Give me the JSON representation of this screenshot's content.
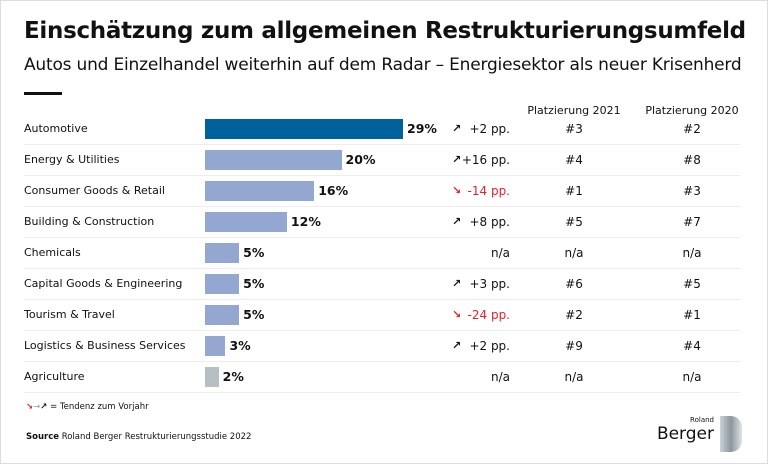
{
  "title": "Einschätzung zum allgemeinen Restrukturierungsumfeld",
  "subtitle": "Autos und Einzelhandel weiterhin auf dem Radar – Energiesektor als neuer Krisenherd",
  "col_2021": "Platzierung 2021",
  "col_2020": "Platzierung 2020",
  "colors": {
    "highlight": "#00629b",
    "bar": "#94a7d0",
    "bar_muted": "#b5bfc4",
    "down": "#e8202a",
    "up": "#111111"
  },
  "chart_data": {
    "type": "bar",
    "orientation": "horizontal",
    "unit": "%",
    "categories": [
      "Automotive",
      "Energy & Utilities",
      "Consumer Goods & Retail",
      "Building & Construction",
      "Chemicals",
      "Capital Goods & Engineering",
      "Tourism & Travel",
      "Logistics & Business Services",
      "Agriculture"
    ],
    "values": [
      29,
      20,
      16,
      12,
      5,
      5,
      5,
      3,
      2
    ],
    "labels": [
      "29%",
      "20%",
      "16%",
      "12%",
      "5%",
      "5%",
      "5%",
      "3%",
      "2%"
    ],
    "change": [
      "+2 pp.",
      "+16 pp.",
      "-14 pp.",
      "+8 pp.",
      "n/a",
      "+3 pp.",
      "-24 pp.",
      "+2 pp.",
      "n/a"
    ],
    "trend": [
      "up",
      "up",
      "down",
      "up",
      "none",
      "up",
      "down",
      "up",
      "none"
    ],
    "rank_2021": [
      "#3",
      "#4",
      "#1",
      "#5",
      "n/a",
      "#6",
      "#2",
      "#9",
      "n/a"
    ],
    "rank_2020": [
      "#2",
      "#8",
      "#3",
      "#7",
      "n/a",
      "#5",
      "#1",
      "#4",
      "n/a"
    ],
    "xlim": [
      0,
      29
    ]
  },
  "legend_text": "= Tendenz zum Vorjahr",
  "source_label": "Source",
  "source_text": "Roland Berger Restrukturierungsstudie 2022",
  "logo": {
    "small": "Roland",
    "big": "Berger"
  }
}
